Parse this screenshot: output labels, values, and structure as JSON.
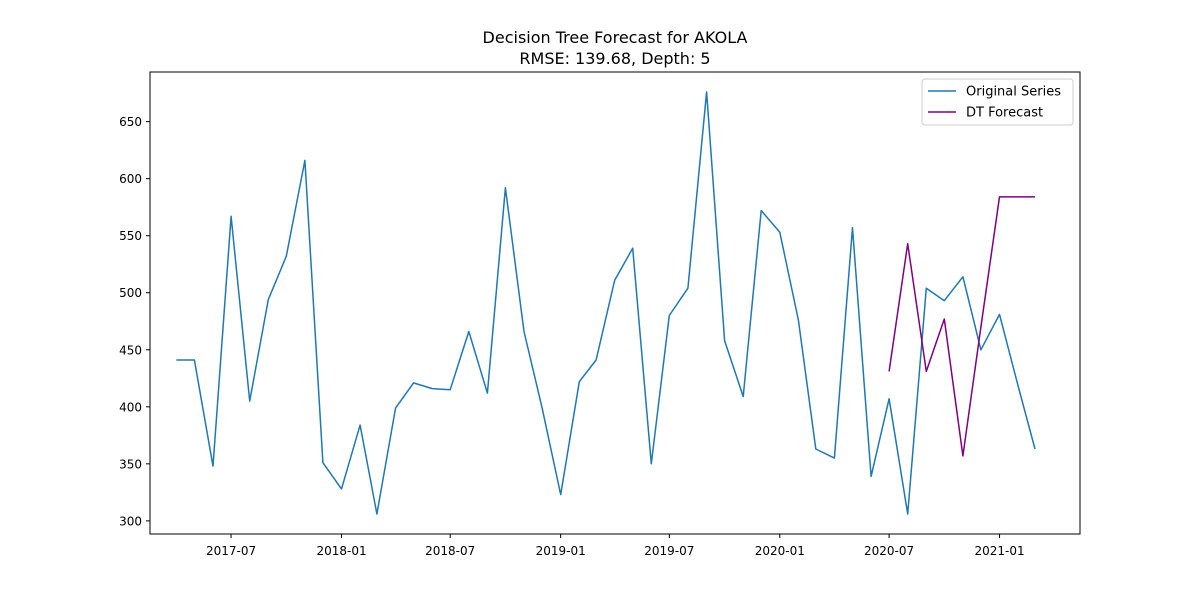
{
  "chart_data": {
    "type": "line",
    "title": "Decision Tree Forecast for AKOLA",
    "subtitle": "RMSE: 139.68, Depth: 5",
    "xlabel": "",
    "ylabel": "",
    "x_range": [
      "2017-02-16",
      "2021-05-15"
    ],
    "ylim": [
      288.5,
      693.5
    ],
    "x_ticks": [
      {
        "date": "2017-07-01",
        "label": "2017-07"
      },
      {
        "date": "2018-01-01",
        "label": "2018-01"
      },
      {
        "date": "2018-07-01",
        "label": "2018-07"
      },
      {
        "date": "2019-01-01",
        "label": "2019-01"
      },
      {
        "date": "2019-07-01",
        "label": "2019-07"
      },
      {
        "date": "2020-01-01",
        "label": "2020-01"
      },
      {
        "date": "2020-07-01",
        "label": "2020-07"
      },
      {
        "date": "2021-01-01",
        "label": "2021-01"
      }
    ],
    "y_ticks": [
      300,
      350,
      400,
      450,
      500,
      550,
      600,
      650
    ],
    "grid": false,
    "legend": "top-right",
    "series": [
      {
        "name": "Original Series",
        "color": "#1f77b4",
        "x": [
          "2017-04-01",
          "2017-05-01",
          "2017-06-01",
          "2017-07-01",
          "2017-08-01",
          "2017-09-01",
          "2017-10-01",
          "2017-11-01",
          "2017-12-01",
          "2018-01-01",
          "2018-02-01",
          "2018-03-01",
          "2018-04-01",
          "2018-05-01",
          "2018-06-01",
          "2018-07-01",
          "2018-08-01",
          "2018-09-01",
          "2018-10-01",
          "2018-11-01",
          "2018-12-01",
          "2019-01-01",
          "2019-02-01",
          "2019-03-01",
          "2019-04-01",
          "2019-05-01",
          "2019-06-01",
          "2019-07-01",
          "2019-08-01",
          "2019-09-01",
          "2019-10-01",
          "2019-11-01",
          "2019-12-01",
          "2020-01-01",
          "2020-02-01",
          "2020-03-01",
          "2020-04-01",
          "2020-05-01",
          "2020-06-01",
          "2020-07-01",
          "2020-08-01",
          "2020-09-01",
          "2020-10-01",
          "2020-11-01",
          "2020-12-01",
          "2021-01-01",
          "2021-02-01",
          "2021-03-01"
        ],
        "values": [
          441,
          441,
          348,
          567,
          405,
          494,
          532,
          616,
          351,
          328,
          384,
          306,
          399,
          421,
          416,
          415,
          466,
          412,
          592,
          466,
          399,
          323,
          422,
          441,
          511,
          539,
          350,
          480,
          504,
          676,
          458,
          409,
          572,
          553,
          476,
          363,
          355,
          557,
          339,
          407,
          306,
          504,
          493,
          514,
          450,
          481,
          418,
          363
        ]
      },
      {
        "name": "DT Forecast",
        "color": "#800080",
        "x": [
          "2020-07-01",
          "2020-08-01",
          "2020-09-01",
          "2020-10-01",
          "2020-11-01",
          "2020-12-01",
          "2021-01-01",
          "2021-02-01",
          "2021-03-01"
        ],
        "values": [
          431,
          543,
          431,
          477,
          357,
          470,
          584,
          584,
          584
        ]
      }
    ]
  }
}
